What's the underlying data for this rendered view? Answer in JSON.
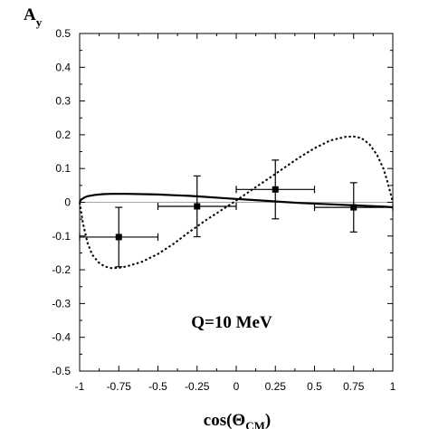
{
  "chart_data": {
    "type": "scatter",
    "ylabel_main": "A",
    "ylabel_sub": "y",
    "xlabel_main": "cos(Θ",
    "xlabel_sub": "CM",
    "xlabel_close": ")",
    "annotation": "Q=10 MeV",
    "xlim": [
      -1,
      1
    ],
    "ylim": [
      -0.5,
      0.5
    ],
    "x_ticks": [
      -1,
      -0.75,
      -0.5,
      -0.25,
      0,
      0.25,
      0.5,
      0.75,
      1
    ],
    "x_tick_labels": [
      "-1",
      "-0.75",
      "-0.5",
      "-0.25",
      "0",
      "0.25",
      "0.5",
      "0.75",
      "1"
    ],
    "y_ticks": [
      -0.5,
      -0.4,
      -0.3,
      -0.2,
      -0.1,
      0,
      0.1,
      0.2,
      0.3,
      0.4,
      0.5
    ],
    "y_tick_labels": [
      "-0.5",
      "-0.4",
      "-0.3",
      "-0.2",
      "-0.1",
      "0",
      "0.1",
      "0.2",
      "0.3",
      "0.4",
      "0.5"
    ],
    "zero_line": true,
    "data_points": [
      {
        "x": -0.75,
        "y": -0.103,
        "xerr": 0.25,
        "yerr": 0.088
      },
      {
        "x": -0.25,
        "y": -0.012,
        "xerr": 0.25,
        "yerr": 0.09
      },
      {
        "x": 0.25,
        "y": 0.038,
        "xerr": 0.25,
        "yerr": 0.087
      },
      {
        "x": 0.75,
        "y": -0.015,
        "xerr": 0.25,
        "yerr": 0.073
      }
    ],
    "series": [
      {
        "style": "solid",
        "color": "#000000",
        "x": [
          -1,
          -0.99,
          -0.97,
          -0.95,
          -0.9,
          -0.85,
          -0.8,
          -0.7,
          -0.6,
          -0.5,
          -0.4,
          -0.3,
          -0.2,
          -0.1,
          0,
          0.1,
          0.2,
          0.3,
          0.4,
          0.5,
          0.6,
          0.7,
          0.8,
          0.9,
          0.95,
          0.98,
          1
        ],
        "y": [
          0,
          0.008,
          0.014,
          0.018,
          0.022,
          0.024,
          0.025,
          0.025,
          0.024,
          0.023,
          0.021,
          0.019,
          0.016,
          0.013,
          0.01,
          0.007,
          0.004,
          0.001,
          -0.002,
          -0.004,
          -0.006,
          -0.008,
          -0.01,
          -0.012,
          -0.013,
          -0.014,
          -0.015
        ]
      },
      {
        "style": "dotted",
        "color": "#000000",
        "x": [
          -1,
          -0.98,
          -0.95,
          -0.92,
          -0.88,
          -0.84,
          -0.8,
          -0.75,
          -0.7,
          -0.6,
          -0.5,
          -0.4,
          -0.3,
          -0.2,
          -0.1,
          0,
          0.1,
          0.2,
          0.3,
          0.4,
          0.5,
          0.6,
          0.7,
          0.75,
          0.8,
          0.85,
          0.9,
          0.94,
          0.97,
          1
        ],
        "y": [
          0,
          -0.06,
          -0.12,
          -0.155,
          -0.178,
          -0.19,
          -0.195,
          -0.194,
          -0.19,
          -0.176,
          -0.153,
          -0.123,
          -0.088,
          -0.055,
          -0.025,
          0.005,
          0.037,
          0.068,
          0.1,
          0.132,
          0.16,
          0.183,
          0.194,
          0.195,
          0.19,
          0.172,
          0.14,
          0.1,
          0.055,
          0
        ]
      }
    ],
    "grid": false
  }
}
